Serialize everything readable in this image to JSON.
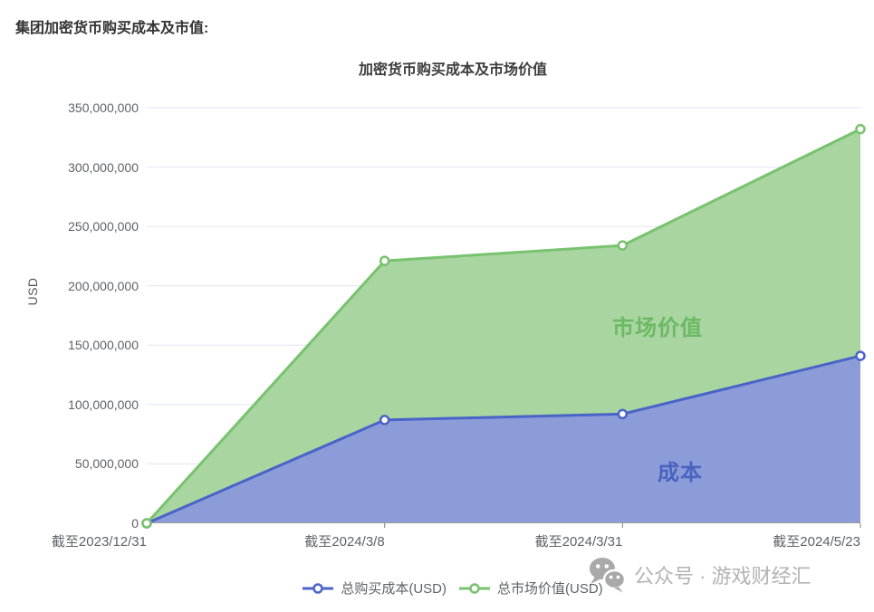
{
  "page": {
    "heading": "集团加密货币购买成本及市值:"
  },
  "chart": {
    "watermark": {
      "icon": "wechat-icon",
      "text": "公众号 · 游戏财经汇",
      "color": "#b3b3b3"
    }
  },
  "chart_data": {
    "type": "area",
    "title": "加密货币购买成本及市场价值",
    "xlabel": "",
    "ylabel": "USD",
    "categories": [
      "截至2023/12/31",
      "截至2024/3/8",
      "截至2024/3/31",
      "截至2024/5/23"
    ],
    "series": [
      {
        "name": "总购买成本(USD)",
        "values": [
          0,
          87000000,
          92000000,
          141000000
        ],
        "line_color": "#4a63c8",
        "fill_color": "#8b9cd8",
        "area_label": "成本",
        "area_label_color": "#4a63c0"
      },
      {
        "name": "总市场价值(USD)",
        "values": [
          0,
          221000000,
          234000000,
          332000000
        ],
        "line_color": "#79c26f",
        "fill_color": "#a8d5a0",
        "area_label": "市场价值",
        "area_label_color": "#6cb964"
      }
    ],
    "ylim": [
      0,
      350000000
    ],
    "y_ticks": [
      0,
      50000000,
      100000000,
      150000000,
      200000000,
      250000000,
      300000000,
      350000000
    ],
    "y_tick_labels": [
      "0",
      "50,000,000",
      "100,000,000",
      "150,000,000",
      "200,000,000",
      "250,000,000",
      "300,000,000",
      "350,000,000"
    ],
    "grid": true,
    "grid_color": "#e2e6f2",
    "axis_line_color": "#9b9b9b",
    "tick_color": "#808080",
    "legend_position": "bottom"
  }
}
